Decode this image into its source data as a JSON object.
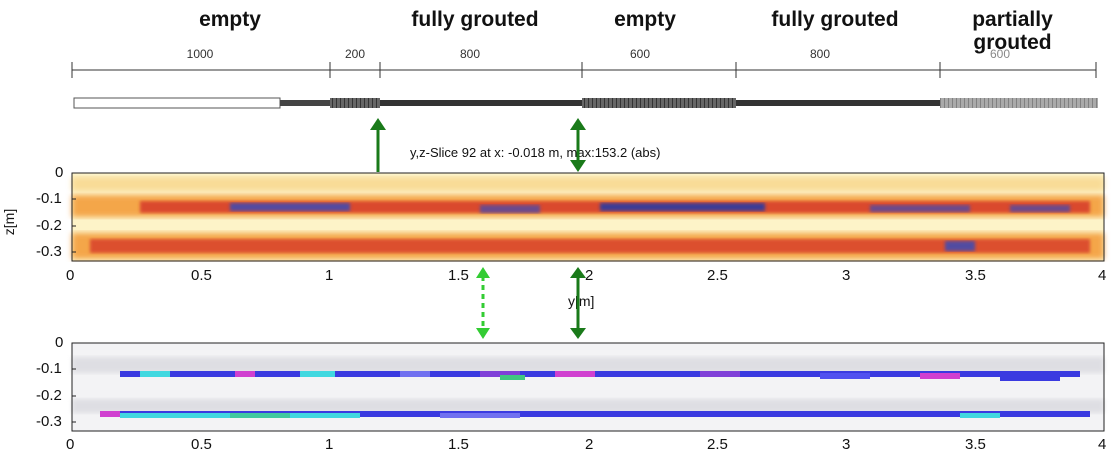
{
  "sections": [
    {
      "label": "empty"
    },
    {
      "label": "fully grouted"
    },
    {
      "label": "empty"
    },
    {
      "label": "fully grouted"
    },
    {
      "label": "partially\ngrouted"
    }
  ],
  "dimensions": [
    "1000",
    "200",
    "800",
    "600",
    "800",
    "600"
  ],
  "slice_caption": "y,z-Slice 92 at x: -0.018 m, max:153.2 (abs)",
  "panel1": {
    "ylabel": "z[m]",
    "xlabel": "y[m]",
    "yticks": [
      "0",
      "-0.1",
      "-0.2",
      "-0.3"
    ],
    "xticks": [
      "0",
      "0.5",
      "1",
      "1.5",
      "2",
      "2.5",
      "3",
      "3.5",
      "4"
    ]
  },
  "panel2": {
    "yticks": [
      "0",
      "-0.1",
      "-0.2",
      "-0.3"
    ],
    "xticks": [
      "0",
      "0.5",
      "1",
      "1.5",
      "2",
      "2.5",
      "3",
      "3.5",
      "4"
    ]
  },
  "colors": {
    "arrow_green": "#1a7a1a",
    "arrow_light_green": "#33cc33",
    "heat_hot": "#d8402a",
    "heat_warm": "#f4a64a",
    "heat_bg": "#fdf3c8",
    "blue_band": "#3a3ae0",
    "cyan": "#40d8e0",
    "magenta": "#d040d0"
  }
}
